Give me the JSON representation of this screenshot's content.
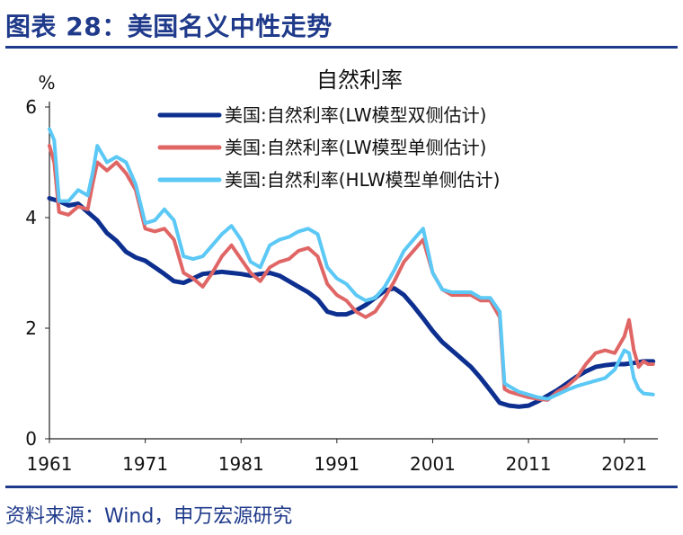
{
  "figure": {
    "title": "图表 28：美国名义中性走势",
    "source": "资料来源：Wind，申万宏源研究"
  },
  "chart_data": {
    "type": "line",
    "title": "自然利率",
    "ylabel": "%",
    "xlabel": "",
    "xlim": [
      1961,
      2024.5
    ],
    "ylim": [
      0,
      6
    ],
    "x_ticks": [
      1961,
      1971,
      1981,
      1991,
      2001,
      2011,
      2021
    ],
    "y_ticks": [
      0,
      2,
      4,
      6
    ],
    "grid": false,
    "legend_position": "top-right",
    "series": [
      {
        "name": "美国:自然利率(LW模型双侧估计)",
        "color": "#0d2f8f",
        "points": [
          [
            1961,
            4.35
          ],
          [
            1962,
            4.3
          ],
          [
            1963,
            4.22
          ],
          [
            1964,
            4.25
          ],
          [
            1965,
            4.1
          ],
          [
            1966,
            3.95
          ],
          [
            1967,
            3.72
          ],
          [
            1968,
            3.58
          ],
          [
            1969,
            3.38
          ],
          [
            1970,
            3.28
          ],
          [
            1971,
            3.22
          ],
          [
            1972,
            3.1
          ],
          [
            1973,
            2.98
          ],
          [
            1974,
            2.85
          ],
          [
            1975,
            2.82
          ],
          [
            1976,
            2.9
          ],
          [
            1977,
            2.98
          ],
          [
            1978,
            3.0
          ],
          [
            1979,
            3.02
          ],
          [
            1980,
            3.0
          ],
          [
            1981,
            2.98
          ],
          [
            1982,
            2.95
          ],
          [
            1983,
            2.98
          ],
          [
            1984,
            3.0
          ],
          [
            1985,
            2.95
          ],
          [
            1986,
            2.85
          ],
          [
            1987,
            2.75
          ],
          [
            1988,
            2.65
          ],
          [
            1989,
            2.52
          ],
          [
            1990,
            2.3
          ],
          [
            1991,
            2.25
          ],
          [
            1992,
            2.25
          ],
          [
            1993,
            2.32
          ],
          [
            1994,
            2.42
          ],
          [
            1995,
            2.55
          ],
          [
            1996,
            2.68
          ],
          [
            1997,
            2.72
          ],
          [
            1998,
            2.6
          ],
          [
            1999,
            2.4
          ],
          [
            2000,
            2.18
          ],
          [
            2001,
            1.95
          ],
          [
            2002,
            1.75
          ],
          [
            2003,
            1.6
          ],
          [
            2004,
            1.45
          ],
          [
            2005,
            1.3
          ],
          [
            2006,
            1.1
          ],
          [
            2007,
            0.88
          ],
          [
            2008,
            0.65
          ],
          [
            2009,
            0.6
          ],
          [
            2010,
            0.58
          ],
          [
            2011,
            0.6
          ],
          [
            2012,
            0.68
          ],
          [
            2013,
            0.78
          ],
          [
            2014,
            0.88
          ],
          [
            2015,
            1.0
          ],
          [
            2016,
            1.12
          ],
          [
            2017,
            1.22
          ],
          [
            2018,
            1.3
          ],
          [
            2019,
            1.33
          ],
          [
            2020,
            1.35
          ],
          [
            2021,
            1.35
          ],
          [
            2022,
            1.37
          ],
          [
            2023,
            1.4
          ],
          [
            2024,
            1.4
          ]
        ]
      },
      {
        "name": "美国:自然利率(LW模型单侧估计)",
        "color": "#e06666",
        "points": [
          [
            1961,
            5.3
          ],
          [
            1961.5,
            5.0
          ],
          [
            1962,
            4.1
          ],
          [
            1963,
            4.05
          ],
          [
            1964,
            4.2
          ],
          [
            1965,
            4.15
          ],
          [
            1965.5,
            4.6
          ],
          [
            1966,
            5.0
          ],
          [
            1967,
            4.85
          ],
          [
            1968,
            5.0
          ],
          [
            1969,
            4.8
          ],
          [
            1970,
            4.5
          ],
          [
            1971,
            3.8
          ],
          [
            1972,
            3.75
          ],
          [
            1973,
            3.8
          ],
          [
            1974,
            3.6
          ],
          [
            1975,
            3.0
          ],
          [
            1976,
            2.9
          ],
          [
            1977,
            2.75
          ],
          [
            1978,
            3.0
          ],
          [
            1979,
            3.3
          ],
          [
            1980,
            3.5
          ],
          [
            1981,
            3.25
          ],
          [
            1982,
            3.0
          ],
          [
            1983,
            2.85
          ],
          [
            1984,
            3.1
          ],
          [
            1985,
            3.2
          ],
          [
            1986,
            3.25
          ],
          [
            1987,
            3.4
          ],
          [
            1988,
            3.45
          ],
          [
            1989,
            3.3
          ],
          [
            1990,
            2.8
          ],
          [
            1991,
            2.6
          ],
          [
            1992,
            2.5
          ],
          [
            1993,
            2.3
          ],
          [
            1994,
            2.2
          ],
          [
            1995,
            2.3
          ],
          [
            1996,
            2.55
          ],
          [
            1997,
            2.85
          ],
          [
            1998,
            3.2
          ],
          [
            1999,
            3.4
          ],
          [
            2000,
            3.6
          ],
          [
            2001,
            3.0
          ],
          [
            2002,
            2.7
          ],
          [
            2003,
            2.6
          ],
          [
            2004,
            2.6
          ],
          [
            2005,
            2.6
          ],
          [
            2006,
            2.5
          ],
          [
            2007,
            2.5
          ],
          [
            2008,
            2.2
          ],
          [
            2008.5,
            0.9
          ],
          [
            2009,
            0.85
          ],
          [
            2010,
            0.8
          ],
          [
            2011,
            0.75
          ],
          [
            2012,
            0.72
          ],
          [
            2013,
            0.7
          ],
          [
            2014,
            0.85
          ],
          [
            2015,
            0.95
          ],
          [
            2016,
            1.1
          ],
          [
            2017,
            1.35
          ],
          [
            2018,
            1.55
          ],
          [
            2019,
            1.6
          ],
          [
            2020,
            1.55
          ],
          [
            2021,
            1.85
          ],
          [
            2021.5,
            2.15
          ],
          [
            2022,
            1.6
          ],
          [
            2022.5,
            1.3
          ],
          [
            2023,
            1.4
          ],
          [
            2023.5,
            1.35
          ],
          [
            2024,
            1.35
          ]
        ]
      },
      {
        "name": "美国:自然利率(HLW模型单侧估计)",
        "color": "#5bc8f5",
        "points": [
          [
            1961,
            5.6
          ],
          [
            1961.5,
            5.4
          ],
          [
            1962,
            4.3
          ],
          [
            1963,
            4.3
          ],
          [
            1964,
            4.5
          ],
          [
            1965,
            4.4
          ],
          [
            1965.5,
            4.8
          ],
          [
            1966,
            5.3
          ],
          [
            1967,
            5.0
          ],
          [
            1968,
            5.1
          ],
          [
            1969,
            5.0
          ],
          [
            1970,
            4.6
          ],
          [
            1971,
            3.9
          ],
          [
            1972,
            3.95
          ],
          [
            1973,
            4.15
          ],
          [
            1974,
            3.95
          ],
          [
            1975,
            3.3
          ],
          [
            1976,
            3.25
          ],
          [
            1977,
            3.3
          ],
          [
            1978,
            3.5
          ],
          [
            1979,
            3.7
          ],
          [
            1980,
            3.85
          ],
          [
            1981,
            3.6
          ],
          [
            1982,
            3.2
          ],
          [
            1983,
            3.1
          ],
          [
            1984,
            3.5
          ],
          [
            1985,
            3.6
          ],
          [
            1986,
            3.65
          ],
          [
            1987,
            3.75
          ],
          [
            1988,
            3.8
          ],
          [
            1989,
            3.7
          ],
          [
            1990,
            3.1
          ],
          [
            1991,
            2.9
          ],
          [
            1992,
            2.8
          ],
          [
            1993,
            2.6
          ],
          [
            1994,
            2.5
          ],
          [
            1995,
            2.55
          ],
          [
            1996,
            2.75
          ],
          [
            1997,
            3.05
          ],
          [
            1998,
            3.4
          ],
          [
            1999,
            3.6
          ],
          [
            2000,
            3.8
          ],
          [
            2001,
            3.0
          ],
          [
            2002,
            2.7
          ],
          [
            2003,
            2.65
          ],
          [
            2004,
            2.65
          ],
          [
            2005,
            2.65
          ],
          [
            2006,
            2.55
          ],
          [
            2007,
            2.55
          ],
          [
            2008,
            2.3
          ],
          [
            2008.5,
            1.0
          ],
          [
            2009,
            0.95
          ],
          [
            2010,
            0.85
          ],
          [
            2011,
            0.8
          ],
          [
            2012,
            0.75
          ],
          [
            2013,
            0.72
          ],
          [
            2014,
            0.8
          ],
          [
            2015,
            0.88
          ],
          [
            2016,
            0.95
          ],
          [
            2017,
            1.0
          ],
          [
            2018,
            1.05
          ],
          [
            2019,
            1.1
          ],
          [
            2020,
            1.25
          ],
          [
            2021,
            1.6
          ],
          [
            2021.5,
            1.55
          ],
          [
            2022,
            1.1
          ],
          [
            2022.5,
            0.9
          ],
          [
            2023,
            0.82
          ],
          [
            2024,
            0.8
          ]
        ]
      }
    ]
  }
}
